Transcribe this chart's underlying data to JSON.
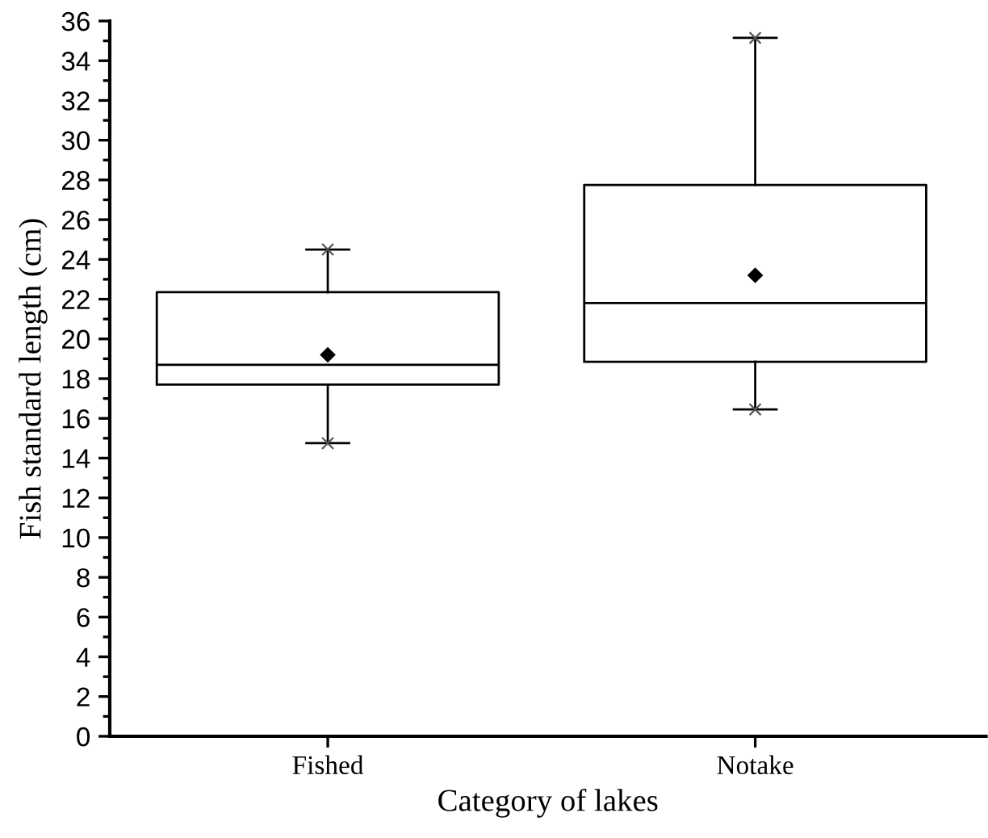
{
  "chart_data": {
    "type": "box",
    "xlabel": "Category of lakes",
    "ylabel": "Fish standard length (cm)",
    "categories": [
      "Fished",
      "Notake"
    ],
    "boxes": [
      {
        "low": 14.75,
        "q1": 17.7,
        "median": 18.7,
        "q3": 22.35,
        "high": 24.5,
        "mean": 19.2,
        "outliers": [
          14.75,
          24.5
        ]
      },
      {
        "low": 16.45,
        "q1": 18.85,
        "median": 21.8,
        "q3": 27.75,
        "high": 35.15,
        "mean": 23.2,
        "outliers": [
          16.45,
          35.15
        ]
      }
    ],
    "ylim": [
      0,
      36
    ],
    "yticks": [
      0,
      2,
      4,
      6,
      8,
      10,
      12,
      14,
      16,
      18,
      20,
      22,
      24,
      26,
      28,
      30,
      32,
      34,
      36
    ],
    "grid": false
  }
}
